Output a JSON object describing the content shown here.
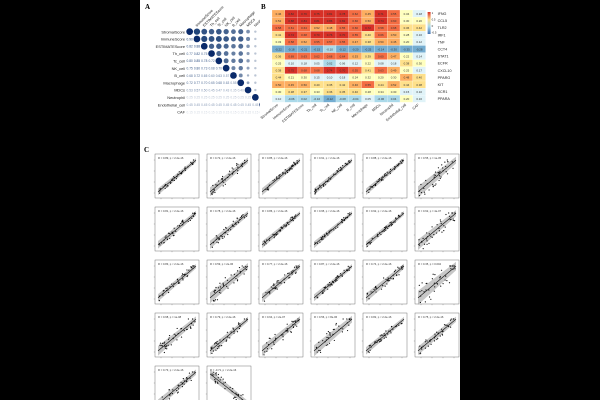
{
  "panels": {
    "a": "A",
    "b": "B",
    "c": "C"
  },
  "panelA": {
    "row_labels": [
      "StromalScore",
      "ImmuneScore",
      "ESTIMATEScore",
      "Th_cell",
      "Tc_cell",
      "NK_cell",
      "B_cell",
      "Macrophage",
      "MDCs",
      "Neutrophil",
      "Endothelial_cell",
      "CAF"
    ],
    "col_labels": [
      "ImmuneScore",
      "ESTIMATEScore",
      "Th_cell",
      "Tc_cell",
      "NK_cell",
      "B_cell",
      "Macrophage",
      "MDCs",
      "Neutrophil",
      "Endothelial_cell",
      "CAF"
    ],
    "colorbar_ticks": [
      "1",
      "0.8",
      "0.6",
      "0.4",
      "0.2",
      "0",
      "-0.2",
      "-0.4",
      "-0.6",
      "-0.8",
      "-1"
    ]
  },
  "panelB": {
    "col_labels": [
      "StromalScore",
      "ImmuneScore",
      "ESTIMATEScore",
      "Th_cell",
      "Tc_cell",
      "NK_cell",
      "B_cell",
      "Macrophage",
      "MDCs",
      "Neutrophil",
      "Endothelial_cell",
      "CAF"
    ],
    "row_labels": [
      "IFNG",
      "CCL5",
      "TLR2",
      "IRF1",
      "TNF",
      "CCT4",
      "STAT1",
      "ECFR",
      "CXCL10",
      "PPARG",
      "KIT",
      "XCR1",
      "PPARA"
    ],
    "values": [
      [
        0.46,
        0.82,
        0.76,
        0.75,
        0.81,
        0.78,
        0.62,
        0.45,
        0.71,
        0.55,
        0.34,
        0.18
      ],
      [
        0.52,
        0.88,
        0.84,
        0.81,
        0.86,
        0.82,
        0.66,
        0.5,
        0.74,
        0.6,
        0.3,
        0.2
      ],
      [
        0.58,
        0.61,
        0.64,
        0.52,
        0.48,
        0.55,
        0.6,
        0.72,
        0.58,
        0.68,
        0.36,
        0.42
      ],
      [
        0.41,
        0.74,
        0.68,
        0.7,
        0.76,
        0.7,
        0.55,
        0.4,
        0.66,
        0.5,
        0.28,
        0.16
      ],
      [
        0.33,
        0.58,
        0.52,
        0.55,
        0.57,
        0.55,
        0.47,
        0.38,
        0.5,
        0.45,
        0.2,
        0.12
      ],
      [
        -0.22,
        -0.18,
        -0.21,
        -0.15,
        -0.1,
        -0.12,
        -0.2,
        -0.25,
        -0.14,
        -0.3,
        -0.35,
        -0.28
      ],
      [
        0.36,
        0.69,
        0.63,
        0.62,
        0.68,
        0.64,
        0.53,
        0.39,
        0.6,
        0.47,
        0.22,
        0.14
      ],
      [
        0.25,
        0.1,
        0.18,
        0.05,
        0.02,
        0.06,
        0.12,
        0.22,
        0.08,
        0.18,
        0.38,
        0.3
      ],
      [
        0.38,
        0.75,
        0.68,
        0.68,
        0.74,
        0.7,
        0.55,
        0.41,
        0.63,
        0.49,
        0.25,
        0.17
      ],
      [
        0.44,
        0.21,
        0.3,
        0.15,
        0.1,
        0.18,
        0.24,
        0.32,
        0.2,
        0.3,
        0.48,
        0.4
      ],
      [
        0.5,
        0.45,
        0.5,
        0.4,
        0.35,
        0.42,
        0.46,
        0.55,
        0.44,
        0.52,
        0.44,
        0.38
      ],
      [
        0.3,
        0.38,
        0.37,
        0.33,
        0.36,
        0.35,
        0.4,
        0.28,
        0.34,
        0.3,
        0.15,
        0.1
      ],
      [
        0.1,
        -0.06,
        0.02,
        -0.1,
        -0.12,
        -0.08,
        -0.04,
        0.05,
        -0.06,
        0.04,
        0.2,
        0.16
      ]
    ],
    "legend_ticks": [
      "1",
      "0.5",
      "0",
      "-0.5"
    ]
  },
  "panelC": {
    "plots": [
      {
        "label": "R = 0.89, p < 2.2e-16"
      },
      {
        "label": "R = 0.72, p < 2.2e-16"
      },
      {
        "label": "R = 0.85, p < 2.2e-16"
      },
      {
        "label": "R = 0.91, p < 2.2e-16"
      },
      {
        "label": "R = 0.88, p < 2.2e-16"
      },
      {
        "label": "R = 0.55, p = 1e-05"
      },
      {
        "label": "R = 0.81, p < 2.2e-16"
      },
      {
        "label": "R = 0.78, p < 2.2e-16"
      },
      {
        "label": "R = 0.86, p < 2.2e-16"
      },
      {
        "label": "R = 0.95, p < 2.2e-16"
      },
      {
        "label": "R = 0.92, p < 2.2e-16"
      },
      {
        "label": "R = 0.62, p = 4e-07"
      },
      {
        "label": "R = 0.83, p < 2.2e-16"
      },
      {
        "label": "R = 0.59, p = 2e-06"
      },
      {
        "label": "R = 0.77, p < 2.2e-16"
      },
      {
        "label": "R = 0.87, p < 2.2e-16"
      },
      {
        "label": "R = 0.74, p < 2.2e-16"
      },
      {
        "label": "R = 0.35, p = 0.004"
      },
      {
        "label": "R = 0.68, p = 1e-08"
      },
      {
        "label": "R = 0.79, p < 2.2e-16"
      },
      {
        "label": "R = 0.64, p = 2e-07"
      },
      {
        "label": "R = 0.56, p = 8e-06"
      },
      {
        "label": "R = 0.82, p < 2.2e-16"
      },
      {
        "label": "R = 0.75, p < 2.2e-16"
      },
      {
        "label": "R = 0.73, p < 2.2e-16"
      },
      {
        "label": "R = -0.71, p < 2.2e-16"
      }
    ]
  }
}
